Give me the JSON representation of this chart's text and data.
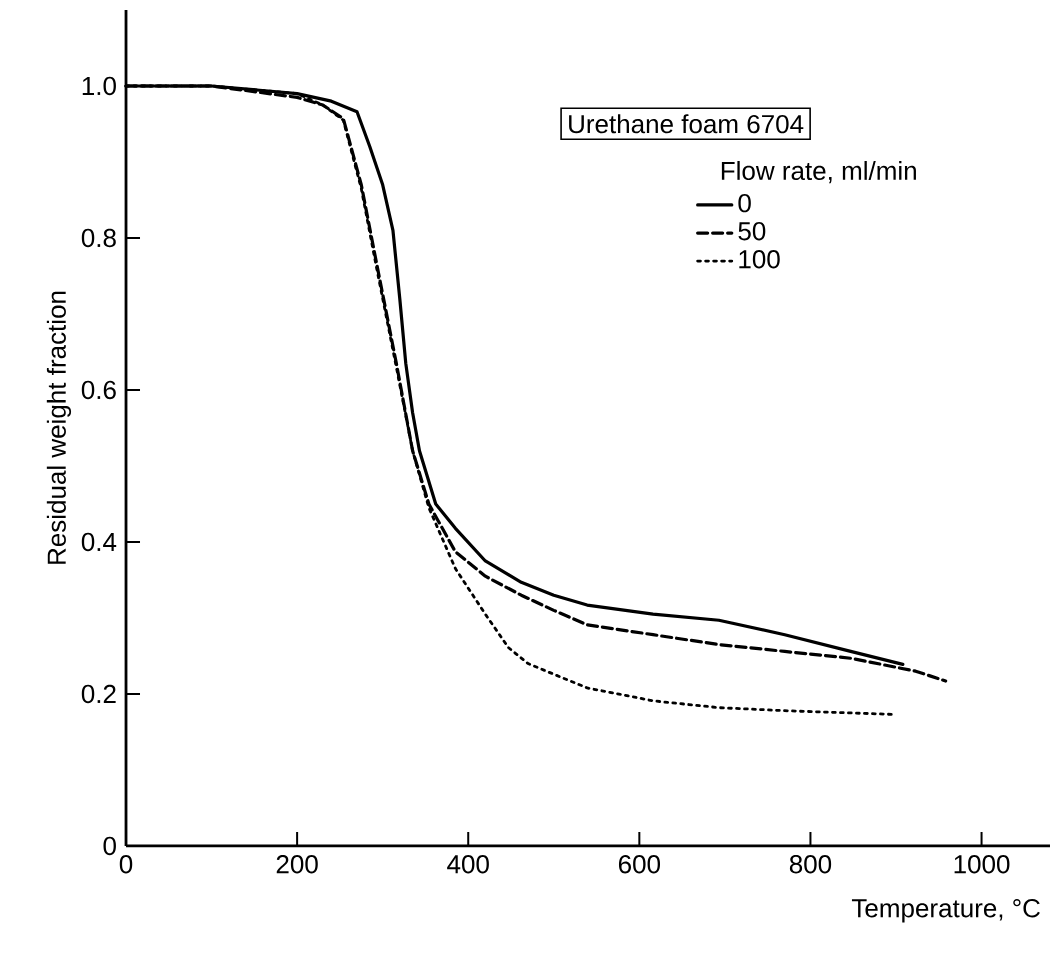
{
  "chart_data": {
    "type": "line",
    "title": "Urethane foam 6704",
    "xlabel": "Temperature, °C",
    "ylabel": "Residual weight fraction",
    "legend_title": "Flow rate, ml/min",
    "xlim": [
      0,
      1080
    ],
    "ylim": [
      0,
      1.1
    ],
    "xticks": [
      0,
      200,
      400,
      600,
      800,
      1000
    ],
    "yticks": [
      0,
      0.2,
      0.4,
      0.6,
      0.8,
      {
        "value": 1.0,
        "label": "1.0"
      }
    ],
    "grid": false,
    "legend": "top right",
    "marker": "none",
    "series": [
      {
        "name": "0",
        "color": "#000000",
        "line_style": "solid",
        "x": [
          0,
          100,
          200,
          240,
          270,
          285,
          300,
          312,
          320,
          327,
          335,
          343,
          362,
          385,
          420,
          462,
          500,
          539,
          616,
          693,
          770,
          847,
          908
        ],
        "values": [
          1.0,
          1.0,
          0.99,
          0.98,
          0.966,
          0.92,
          0.87,
          0.81,
          0.72,
          0.635,
          0.57,
          0.52,
          0.45,
          0.418,
          0.375,
          0.347,
          0.33,
          0.317,
          0.305,
          0.297,
          0.278,
          0.256,
          0.239
        ]
      },
      {
        "name": "50",
        "color": "#000000",
        "line_style": "dashed",
        "x": [
          0,
          100,
          200,
          230,
          254,
          275,
          293,
          316,
          335,
          354,
          385,
          420,
          462,
          500,
          539,
          616,
          693,
          770,
          847,
          923,
          958
        ],
        "values": [
          1.0,
          1.0,
          0.985,
          0.975,
          0.957,
          0.87,
          0.766,
          0.635,
          0.52,
          0.45,
          0.387,
          0.355,
          0.33,
          0.31,
          0.291,
          0.278,
          0.265,
          0.256,
          0.247,
          0.23,
          0.217
        ]
      },
      {
        "name": "100",
        "color": "#000000",
        "line_style": "dotted",
        "x": [
          0,
          100,
          200,
          230,
          254,
          275,
          293,
          316,
          335,
          354,
          385,
          420,
          447,
          470,
          500,
          539,
          616,
          693,
          770,
          900
        ],
        "values": [
          1.0,
          1.0,
          0.99,
          0.975,
          0.955,
          0.865,
          0.76,
          0.63,
          0.52,
          0.445,
          0.365,
          0.305,
          0.261,
          0.24,
          0.226,
          0.208,
          0.191,
          0.182,
          0.178,
          0.173
        ]
      }
    ]
  }
}
